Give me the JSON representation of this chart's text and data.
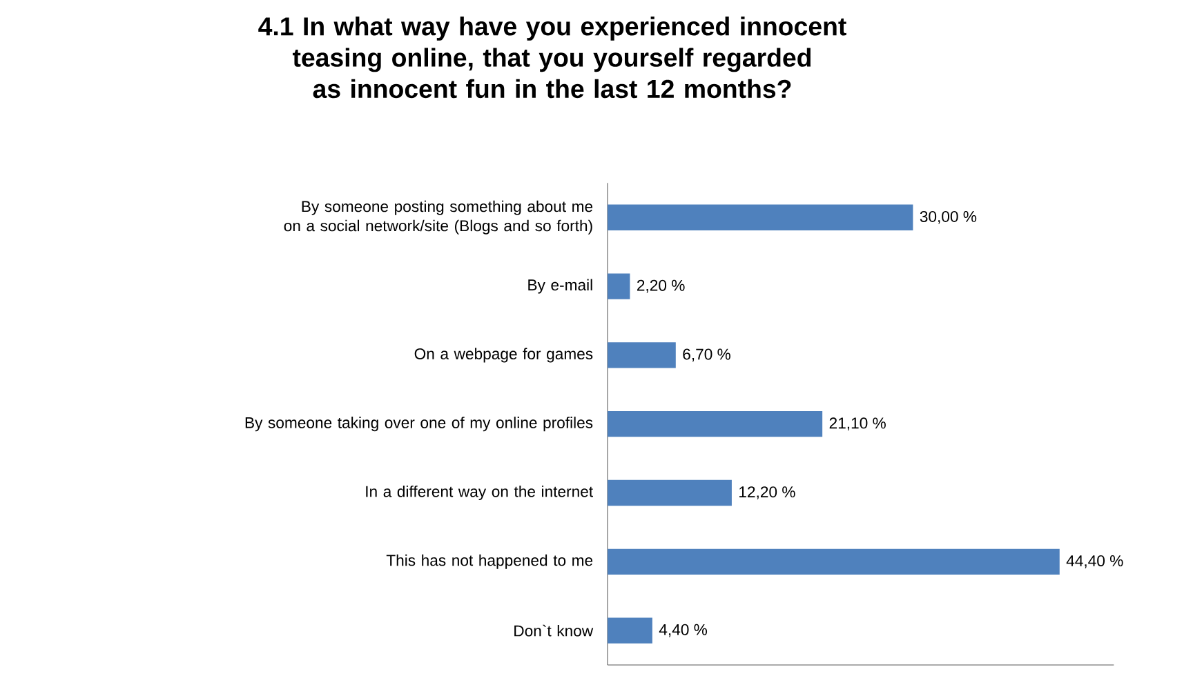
{
  "chart_data": {
    "type": "bar",
    "orientation": "horizontal",
    "title": "4.1 In what way have you experienced innocent teasing online, that you yourself regarded as innocent fun in the last 12 months?",
    "categories": [
      "By someone posting something about me on a social network/site (Blogs and so forth)",
      "By e-mail",
      "On a webpage for games",
      "By someone taking over one of my online profiles",
      "In a different way on the internet",
      "This has not happened to me",
      "Don`t know"
    ],
    "values": [
      30.0,
      2.2,
      6.7,
      21.1,
      12.2,
      44.4,
      4.4
    ],
    "value_labels": [
      "30,00 %",
      "2,20 %",
      "6,70 %",
      "21,10 %",
      "12,20 %",
      "44,40 %",
      "4,40 %"
    ],
    "color": "#4f81bd"
  }
}
